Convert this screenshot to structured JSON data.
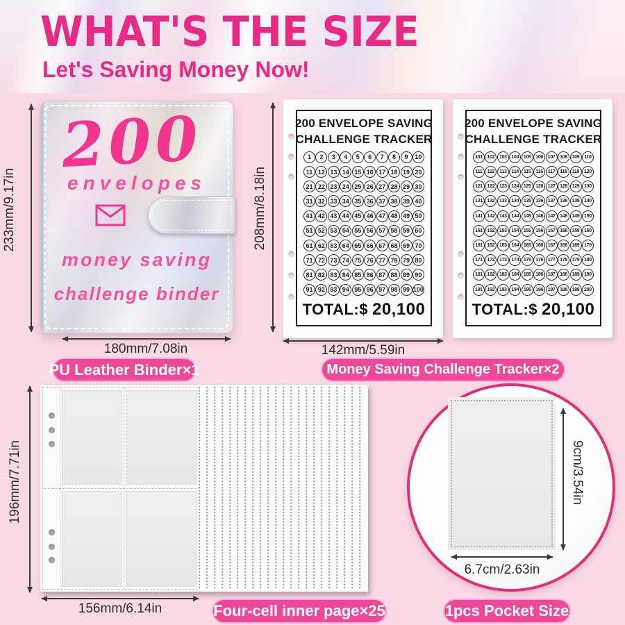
{
  "header": {
    "title": "WHAT'S THE SIZE",
    "subtitle": "Let's Saving Money Now!"
  },
  "binder": {
    "cover_count": "200",
    "cover_word": "envelopes",
    "cover_line3": "money saving",
    "cover_line4": "challenge binder",
    "height_label": "233mm/9.17in",
    "width_label": "180mm/7.08in",
    "badge": "PU Leather Binder×1"
  },
  "tracker": {
    "title_line1": "200 ENVELOPE SAVING",
    "title_line2": "CHALLENGE TRACKER",
    "total_prefix": "TOTAL:$",
    "total_value": "20,100",
    "height_label": "208mm/8.18in",
    "width_label": "142mm/5.59in",
    "badge": "Money Saving Challenge Tracker×2",
    "sheet1_numbers": [
      1,
      2,
      3,
      4,
      5,
      6,
      7,
      8,
      9,
      10,
      11,
      12,
      13,
      14,
      15,
      16,
      17,
      18,
      19,
      20,
      21,
      22,
      23,
      24,
      25,
      26,
      27,
      28,
      29,
      30,
      31,
      32,
      33,
      34,
      35,
      36,
      37,
      38,
      39,
      40,
      41,
      42,
      43,
      44,
      45,
      46,
      47,
      48,
      49,
      50,
      51,
      52,
      53,
      54,
      55,
      56,
      57,
      58,
      59,
      60,
      61,
      62,
      63,
      64,
      65,
      66,
      67,
      68,
      69,
      70,
      71,
      72,
      73,
      74,
      75,
      76,
      77,
      78,
      79,
      80,
      81,
      82,
      83,
      84,
      85,
      86,
      87,
      88,
      89,
      90,
      91,
      92,
      93,
      94,
      95,
      96,
      97,
      98,
      99,
      100
    ],
    "sheet2_numbers": [
      101,
      102,
      103,
      104,
      105,
      106,
      107,
      108,
      109,
      110,
      111,
      112,
      113,
      114,
      115,
      116,
      117,
      118,
      119,
      120,
      121,
      122,
      123,
      124,
      125,
      126,
      127,
      128,
      129,
      130,
      131,
      132,
      133,
      134,
      135,
      136,
      137,
      138,
      139,
      140,
      141,
      142,
      143,
      144,
      145,
      146,
      147,
      148,
      149,
      150,
      151,
      152,
      153,
      154,
      155,
      156,
      157,
      158,
      159,
      160,
      161,
      162,
      163,
      164,
      165,
      166,
      167,
      168,
      169,
      170,
      171,
      172,
      173,
      174,
      175,
      176,
      177,
      178,
      179,
      180,
      181,
      182,
      183,
      184,
      185,
      186,
      187,
      188,
      189,
      190,
      191,
      192,
      193,
      194,
      195,
      196,
      197,
      198,
      199,
      200
    ]
  },
  "inner_page": {
    "height_label": "196mm/7.71in",
    "width_label": "156mm/6.14in",
    "badge": "Four-cell inner page×25"
  },
  "pocket": {
    "height_label": "9cm/3.54in",
    "width_label": "6.7cm/2.63in",
    "badge": "1pcs Pocket Size"
  },
  "colors": {
    "accent_pink": "#e62a85",
    "badge_bg": "#ee4899",
    "badge_border": "#f6aed2",
    "bg_pink": "#f8d9e5",
    "cover_pink": "#f0368f",
    "cover_pink2": "#f4539c",
    "circle_ring": "#dd3076"
  }
}
